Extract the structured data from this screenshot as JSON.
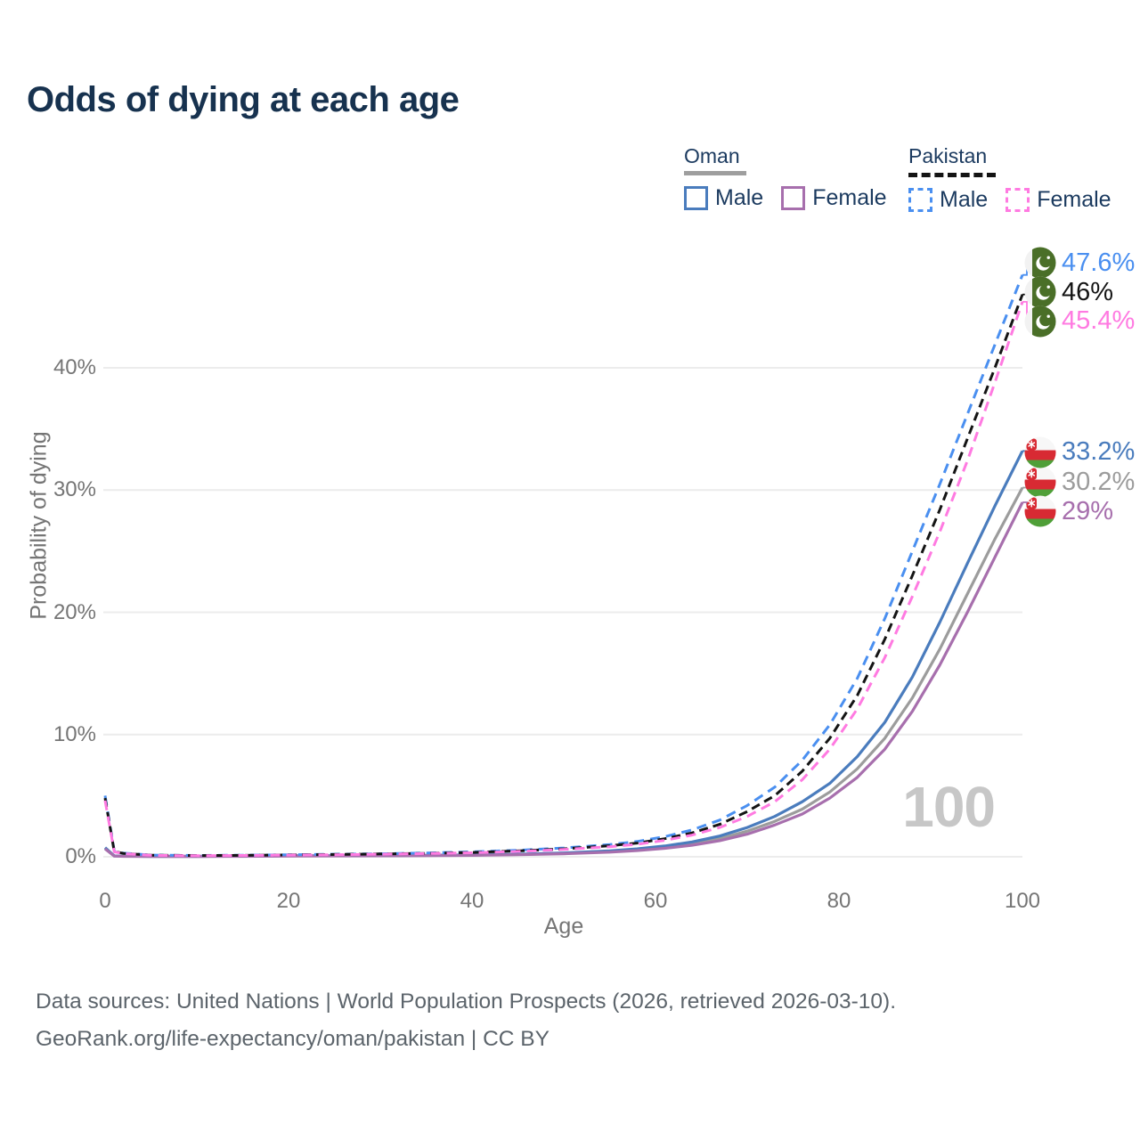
{
  "title": "Odds of dying at each age",
  "legend": {
    "oman": {
      "label": "Oman",
      "male": "Male",
      "female": "Female"
    },
    "pakistan": {
      "label": "Pakistan",
      "male": "Male",
      "female": "Female"
    }
  },
  "watermark": "100",
  "footer": {
    "line1": "Data sources: United Nations | World Population Prospects (2026, retrieved 2026-03-10).",
    "line2": "GeoRank.org/life-expectancy/oman/pakistan | CC BY"
  },
  "colors": {
    "title_text": "#17324f",
    "legend_text": "#1b3a5f",
    "axis_text": "#757575",
    "grid": "#ececec",
    "watermark": "#c7c7c7",
    "footer_text": "#5c646b",
    "oman_underline": "#9e9e9e",
    "pakistan_underline": "#141414",
    "oman_flag_red": "#d82a33",
    "oman_flag_green": "#4f9f38",
    "pakistan_flag_green": "#4a6f28"
  },
  "chart_data": {
    "type": "line",
    "title": "Odds of dying at each age",
    "xlabel": "Age",
    "ylabel": "Probability of dying",
    "xlim": [
      0,
      100
    ],
    "ylim": [
      0,
      48
    ],
    "grid": true,
    "legend_position": "top-right",
    "x_ticks": [
      0,
      20,
      40,
      60,
      80,
      100
    ],
    "y_ticks": [
      {
        "v": 0,
        "label": "0%"
      },
      {
        "v": 10,
        "label": "10%"
      },
      {
        "v": 20,
        "label": "20%"
      },
      {
        "v": 30,
        "label": "30%"
      },
      {
        "v": 40,
        "label": "40%"
      }
    ],
    "series": [
      {
        "id": "oman_both",
        "name": "Oman (both sexes)",
        "country": "Oman",
        "sex": "Both",
        "color": "#9c9c9c",
        "dashed": false,
        "flag": "om",
        "end_label": "30.2%",
        "label_color": "#9c9c9c",
        "points": [
          [
            0,
            0.7
          ],
          [
            1,
            0.07
          ],
          [
            2,
            0.05
          ],
          [
            5,
            0.04
          ],
          [
            10,
            0.04
          ],
          [
            15,
            0.05
          ],
          [
            20,
            0.07
          ],
          [
            25,
            0.08
          ],
          [
            30,
            0.09
          ],
          [
            35,
            0.11
          ],
          [
            40,
            0.14
          ],
          [
            45,
            0.19
          ],
          [
            50,
            0.28
          ],
          [
            55,
            0.43
          ],
          [
            58,
            0.58
          ],
          [
            61,
            0.78
          ],
          [
            64,
            1.07
          ],
          [
            67,
            1.48
          ],
          [
            70,
            2.1
          ],
          [
            73,
            2.9
          ],
          [
            76,
            3.9
          ],
          [
            79,
            5.3
          ],
          [
            82,
            7.2
          ],
          [
            85,
            9.7
          ],
          [
            88,
            13.0
          ],
          [
            91,
            17.0
          ],
          [
            94,
            21.5
          ],
          [
            97,
            26.0
          ],
          [
            100,
            30.2
          ]
        ]
      },
      {
        "id": "oman_male",
        "name": "Oman male",
        "country": "Oman",
        "sex": "Male",
        "color": "#4a7cbd",
        "dashed": false,
        "flag": "om",
        "end_label": "33.2%",
        "label_color": "#4a7cbd",
        "points": [
          [
            0,
            0.75
          ],
          [
            1,
            0.07
          ],
          [
            2,
            0.05
          ],
          [
            5,
            0.04
          ],
          [
            10,
            0.04
          ],
          [
            15,
            0.06
          ],
          [
            20,
            0.08
          ],
          [
            25,
            0.09
          ],
          [
            30,
            0.1
          ],
          [
            35,
            0.12
          ],
          [
            40,
            0.15
          ],
          [
            45,
            0.21
          ],
          [
            50,
            0.31
          ],
          [
            55,
            0.48
          ],
          [
            58,
            0.65
          ],
          [
            61,
            0.88
          ],
          [
            64,
            1.22
          ],
          [
            67,
            1.7
          ],
          [
            70,
            2.4
          ],
          [
            73,
            3.3
          ],
          [
            76,
            4.5
          ],
          [
            79,
            6.0
          ],
          [
            82,
            8.2
          ],
          [
            85,
            11.0
          ],
          [
            88,
            14.7
          ],
          [
            91,
            19.2
          ],
          [
            94,
            24.0
          ],
          [
            97,
            28.7
          ],
          [
            100,
            33.2
          ]
        ]
      },
      {
        "id": "oman_female",
        "name": "Oman female",
        "country": "Oman",
        "sex": "Female",
        "color": "#a76fad",
        "dashed": false,
        "flag": "om",
        "end_label": "29%",
        "label_color": "#a76fad",
        "points": [
          [
            0,
            0.65
          ],
          [
            1,
            0.06
          ],
          [
            2,
            0.04
          ],
          [
            5,
            0.03
          ],
          [
            10,
            0.03
          ],
          [
            15,
            0.04
          ],
          [
            20,
            0.06
          ],
          [
            25,
            0.07
          ],
          [
            30,
            0.08
          ],
          [
            35,
            0.1
          ],
          [
            40,
            0.12
          ],
          [
            45,
            0.17
          ],
          [
            50,
            0.25
          ],
          [
            55,
            0.38
          ],
          [
            58,
            0.51
          ],
          [
            61,
            0.69
          ],
          [
            64,
            0.95
          ],
          [
            67,
            1.32
          ],
          [
            70,
            1.85
          ],
          [
            73,
            2.6
          ],
          [
            76,
            3.5
          ],
          [
            79,
            4.8
          ],
          [
            82,
            6.5
          ],
          [
            85,
            8.8
          ],
          [
            88,
            11.9
          ],
          [
            91,
            15.7
          ],
          [
            94,
            20.0
          ],
          [
            97,
            24.5
          ],
          [
            100,
            29.0
          ]
        ]
      },
      {
        "id": "pakistan_male",
        "name": "Pakistan male",
        "country": "Pakistan",
        "sex": "Male",
        "color": "#4a8ff0",
        "dashed": true,
        "flag": "pk",
        "end_label": "47.6%",
        "label_color": "#4a8ff0",
        "points": [
          [
            0,
            5.0
          ],
          [
            1,
            0.45
          ],
          [
            2,
            0.3
          ],
          [
            5,
            0.14
          ],
          [
            10,
            0.11
          ],
          [
            15,
            0.13
          ],
          [
            20,
            0.17
          ],
          [
            25,
            0.21
          ],
          [
            30,
            0.25
          ],
          [
            35,
            0.31
          ],
          [
            40,
            0.4
          ],
          [
            45,
            0.53
          ],
          [
            50,
            0.72
          ],
          [
            55,
            1.0
          ],
          [
            58,
            1.25
          ],
          [
            61,
            1.65
          ],
          [
            64,
            2.2
          ],
          [
            67,
            3.0
          ],
          [
            70,
            4.2
          ],
          [
            73,
            5.7
          ],
          [
            76,
            7.9
          ],
          [
            79,
            10.8
          ],
          [
            82,
            14.6
          ],
          [
            85,
            19.5
          ],
          [
            88,
            25.0
          ],
          [
            91,
            30.5
          ],
          [
            94,
            36.2
          ],
          [
            97,
            41.9
          ],
          [
            100,
            47.6
          ]
        ]
      },
      {
        "id": "pakistan_both",
        "name": "Pakistan (both sexes)",
        "country": "Pakistan",
        "sex": "Both",
        "color": "#141414",
        "dashed": true,
        "flag": "pk",
        "end_label": "46%",
        "label_color": "#141414",
        "points": [
          [
            0,
            4.8
          ],
          [
            1,
            0.42
          ],
          [
            2,
            0.28
          ],
          [
            5,
            0.13
          ],
          [
            10,
            0.1
          ],
          [
            15,
            0.12
          ],
          [
            20,
            0.15
          ],
          [
            25,
            0.19
          ],
          [
            30,
            0.23
          ],
          [
            35,
            0.28
          ],
          [
            40,
            0.36
          ],
          [
            45,
            0.48
          ],
          [
            50,
            0.65
          ],
          [
            55,
            0.9
          ],
          [
            58,
            1.12
          ],
          [
            61,
            1.48
          ],
          [
            64,
            1.95
          ],
          [
            67,
            2.65
          ],
          [
            70,
            3.7
          ],
          [
            73,
            5.0
          ],
          [
            76,
            7.0
          ],
          [
            79,
            9.7
          ],
          [
            82,
            13.2
          ],
          [
            85,
            17.8
          ],
          [
            88,
            23.0
          ],
          [
            91,
            28.4
          ],
          [
            94,
            34.2
          ],
          [
            97,
            40.0
          ],
          [
            100,
            46.0
          ]
        ]
      },
      {
        "id": "pakistan_female",
        "name": "Pakistan female",
        "country": "Pakistan",
        "sex": "Female",
        "color": "#ff7ae1",
        "dashed": true,
        "flag": "pk",
        "end_label": "45.4%",
        "label_color": "#ff7ae1",
        "points": [
          [
            0,
            4.6
          ],
          [
            1,
            0.4
          ],
          [
            2,
            0.26
          ],
          [
            5,
            0.12
          ],
          [
            10,
            0.09
          ],
          [
            15,
            0.11
          ],
          [
            20,
            0.14
          ],
          [
            25,
            0.17
          ],
          [
            30,
            0.21
          ],
          [
            35,
            0.26
          ],
          [
            40,
            0.33
          ],
          [
            45,
            0.44
          ],
          [
            50,
            0.6
          ],
          [
            55,
            0.82
          ],
          [
            58,
            1.02
          ],
          [
            61,
            1.34
          ],
          [
            64,
            1.78
          ],
          [
            67,
            2.4
          ],
          [
            70,
            3.3
          ],
          [
            73,
            4.5
          ],
          [
            76,
            6.3
          ],
          [
            79,
            8.8
          ],
          [
            82,
            12.1
          ],
          [
            85,
            16.3
          ],
          [
            88,
            21.3
          ],
          [
            91,
            26.6
          ],
          [
            94,
            32.4
          ],
          [
            97,
            38.8
          ],
          [
            100,
            45.4
          ]
        ]
      }
    ]
  }
}
